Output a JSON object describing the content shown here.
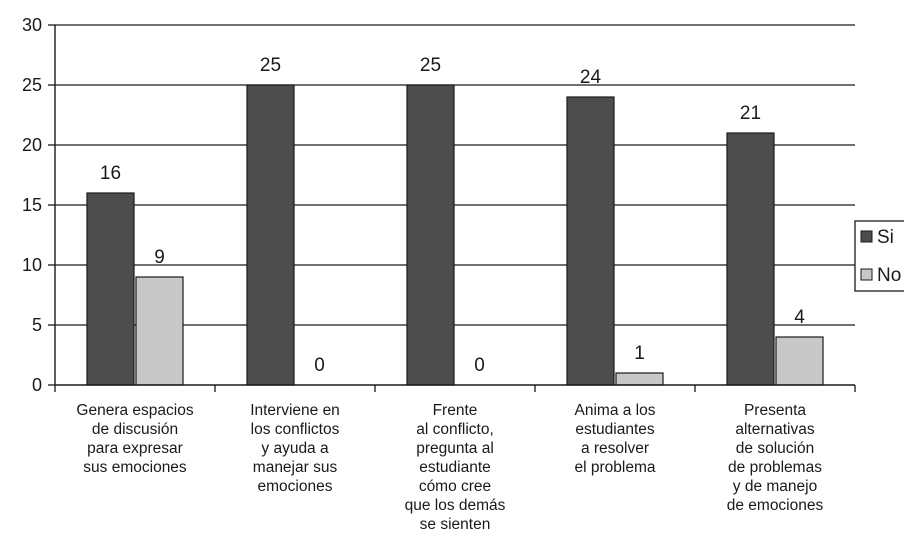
{
  "chart_data": {
    "type": "bar",
    "categories": [
      [
        "Genera espacios",
        "de discusión",
        "para expresar",
        "sus emociones"
      ],
      [
        "Interviene en",
        "los conflictos",
        "y ayuda a",
        "manejar sus",
        "emociones"
      ],
      [
        "Frente",
        "al conflicto,",
        "pregunta al",
        "estudiante",
        "cómo cree",
        "que los demás",
        "se sienten"
      ],
      [
        "Anima a los",
        "estudiantes",
        "a resolver",
        "el problema"
      ],
      [
        "Presenta",
        "alternativas",
        "de solución",
        "de problemas",
        "y de manejo",
        "de emociones"
      ]
    ],
    "series": [
      {
        "name": "Si",
        "values": [
          16,
          25,
          25,
          24,
          21
        ],
        "color": "#4d4d4d"
      },
      {
        "name": "No",
        "values": [
          9,
          0,
          0,
          1,
          4
        ],
        "color": "#c8c8c8"
      }
    ],
    "ylim": [
      0,
      30
    ],
    "yticks": [
      "0",
      "5",
      "10",
      "15",
      "20",
      "25",
      "30"
    ],
    "grid": true,
    "legend": "right"
  }
}
